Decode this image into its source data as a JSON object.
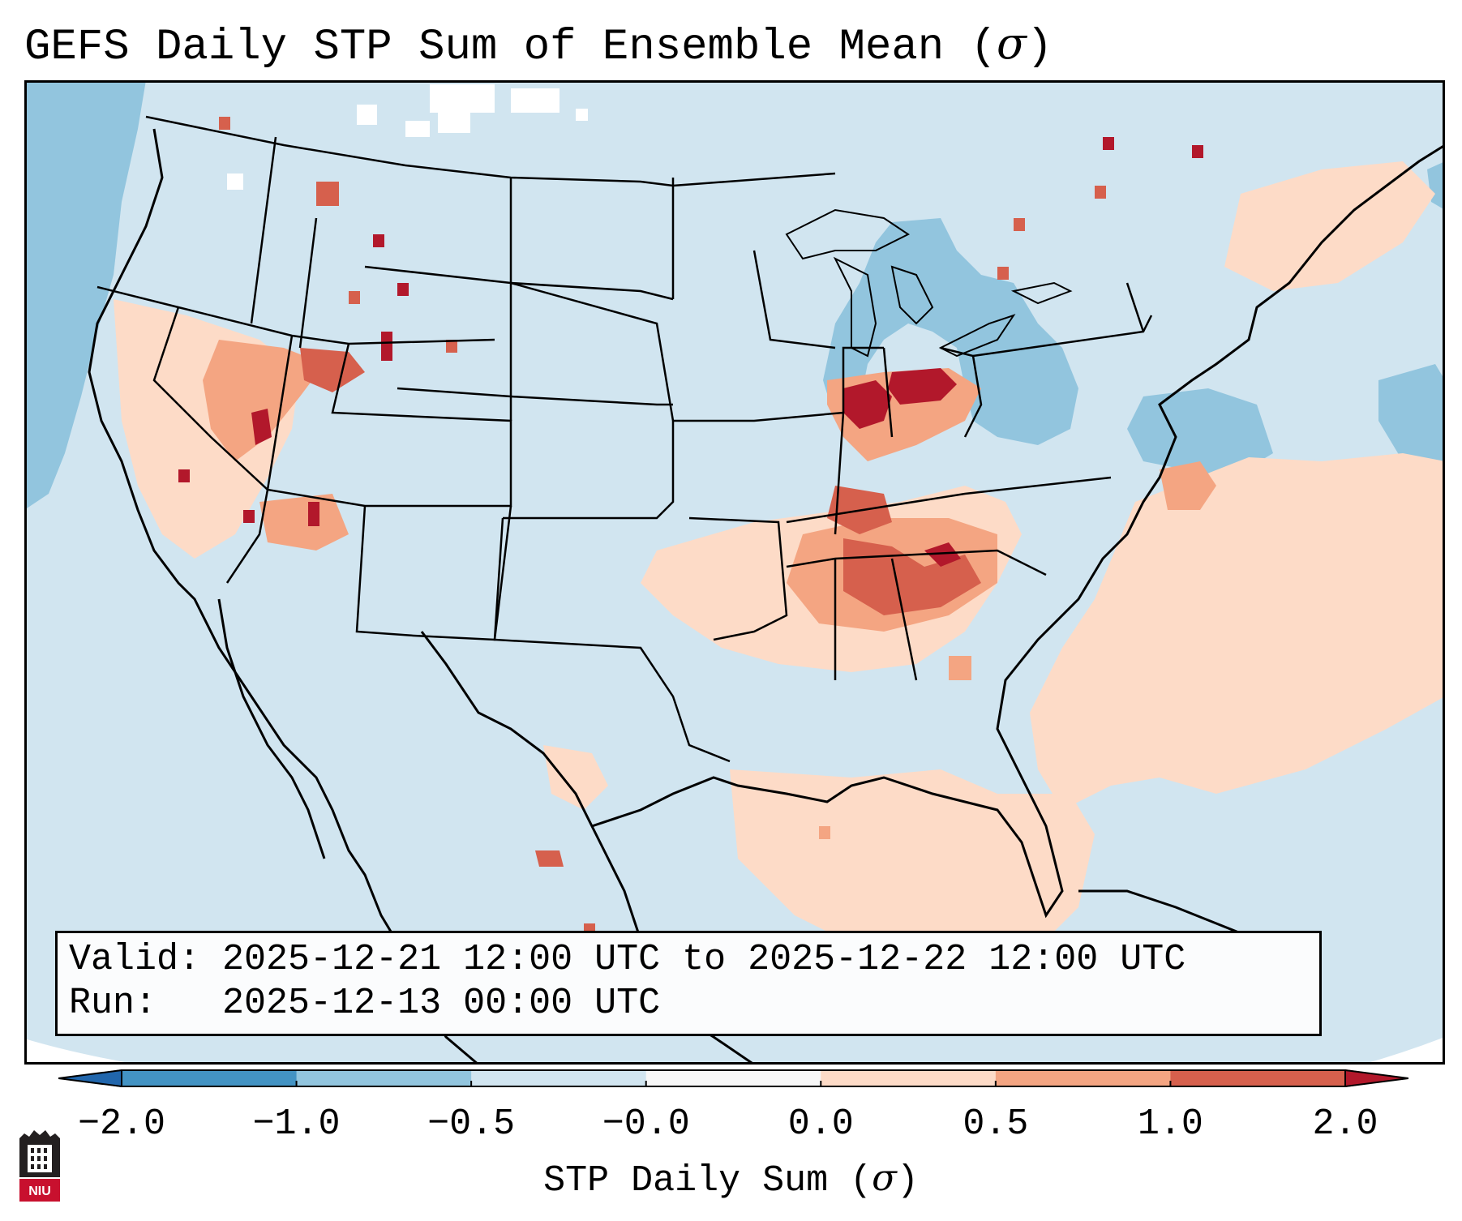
{
  "title": {
    "text": "GEFS Daily STP Sum of Ensemble Mean (",
    "symbol": "σ",
    "close": ")"
  },
  "info": {
    "valid_label": "Valid:",
    "valid_value": "2025-12-21 12:00 UTC to 2025-12-22 12:00 UTC",
    "run_label": "Run:",
    "run_value": "2025-12-13 00:00 UTC"
  },
  "colorbar": {
    "label_text": "STP Daily Sum (",
    "label_symbol": "σ",
    "label_close": ")",
    "ticks": [
      "−2.0",
      "−1.0",
      "−0.5",
      "−0.0",
      "0.0",
      "0.5",
      "1.0",
      "2.0"
    ],
    "bins": [
      {
        "from": -2.0,
        "to": -1.0,
        "color": "#4393c3"
      },
      {
        "from": -1.0,
        "to": -0.5,
        "color": "#92c5de"
      },
      {
        "from": -0.5,
        "to": -0.0,
        "color": "#d1e5f0"
      },
      {
        "from": -0.0,
        "to": 0.0,
        "color": "#f7f7f7"
      },
      {
        "from": 0.0,
        "to": 0.5,
        "color": "#fddbc7"
      },
      {
        "from": 0.5,
        "to": 1.0,
        "color": "#f4a582"
      },
      {
        "from": 1.0,
        "to": 2.0,
        "color": "#d6604d"
      }
    ],
    "under_color": "#2166ac",
    "over_color": "#b2182b"
  },
  "map": {
    "background_color": "#d1e5f0",
    "hotspots": [
      {
        "region": "Ohio Valley",
        "level": 2.0
      },
      {
        "region": "Tennessee / Alabama",
        "level": 1.5
      },
      {
        "region": "Great Basin",
        "level": 1.0
      },
      {
        "region": "Gulf of Mexico",
        "level": 0.3
      },
      {
        "region": "Western Atlantic",
        "level": 0.4
      },
      {
        "region": "Great Lakes",
        "level": -0.7
      },
      {
        "region": "Eastern Pacific",
        "level": -0.7
      }
    ]
  },
  "logo": {
    "text": "NIU"
  }
}
